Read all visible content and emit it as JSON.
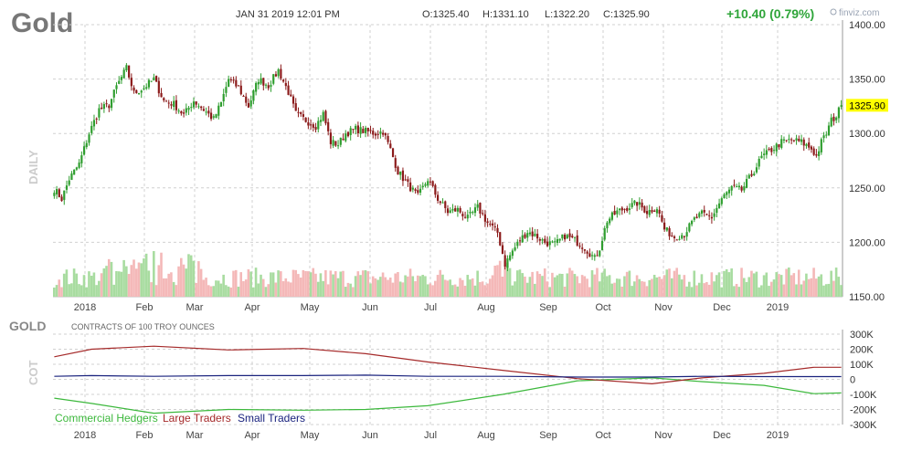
{
  "header": {
    "symbol": "Gold",
    "datetime": "JAN 31 2019 12:01 PM",
    "open": "O:1325.40",
    "high": "H:1331.10",
    "low": "L:1322.20",
    "close": "C:1325.90",
    "change": "+10.40 (0.79%)",
    "brand": "finviz.com"
  },
  "colors": {
    "up": "#2f9e2f",
    "down": "#8b1a1a",
    "volume_up": "#a8dca0",
    "volume_down": "#f4b8b8",
    "grid": "#d0d0d0",
    "commercial": "#3cb83c",
    "large": "#a52a2a",
    "small": "#1a237e",
    "last_price_bg": "#ffff00",
    "change_text": "#2fa53a"
  },
  "chart_data": [
    {
      "type": "candlestick",
      "timeframe_label": "DAILY",
      "ylim": [
        1150,
        1400
      ],
      "yticks": [
        "1150.00",
        "1200.00",
        "1250.00",
        "1300.00",
        "1350.00",
        "1400.00"
      ],
      "ytick_values": [
        1150,
        1200,
        1250,
        1300,
        1350,
        1400
      ],
      "xticks": [
        "2018",
        "Feb",
        "Mar",
        "Apr",
        "May",
        "Jun",
        "Jul",
        "Aug",
        "Sep",
        "Oct",
        "Nov",
        "Dec",
        "2019"
      ],
      "last_price": 1325.9,
      "last_price_label": "1325.90",
      "anchors": [
        [
          0,
          1249
        ],
        [
          3,
          1240
        ],
        [
          6,
          1258
        ],
        [
          10,
          1272
        ],
        [
          14,
          1300
        ],
        [
          18,
          1322
        ],
        [
          22,
          1326
        ],
        [
          25,
          1343
        ],
        [
          29,
          1360
        ],
        [
          32,
          1337
        ],
        [
          36,
          1342
        ],
        [
          40,
          1350
        ],
        [
          44,
          1330
        ],
        [
          48,
          1327
        ],
        [
          52,
          1317
        ],
        [
          56,
          1330
        ],
        [
          60,
          1322
        ],
        [
          64,
          1313
        ],
        [
          67,
          1328
        ],
        [
          70,
          1350
        ],
        [
          74,
          1342
        ],
        [
          78,
          1325
        ],
        [
          82,
          1350
        ],
        [
          86,
          1344
        ],
        [
          90,
          1358
        ],
        [
          94,
          1338
        ],
        [
          97,
          1318
        ],
        [
          101,
          1312
        ],
        [
          105,
          1307
        ],
        [
          108,
          1318
        ],
        [
          111,
          1292
        ],
        [
          114,
          1290
        ],
        [
          117,
          1300
        ],
        [
          121,
          1304
        ],
        [
          125,
          1302
        ],
        [
          129,
          1300
        ],
        [
          132,
          1302
        ],
        [
          135,
          1285
        ],
        [
          138,
          1265
        ],
        [
          142,
          1253
        ],
        [
          146,
          1242
        ],
        [
          150,
          1258
        ],
        [
          154,
          1240
        ],
        [
          158,
          1228
        ],
        [
          162,
          1230
        ],
        [
          166,
          1222
        ],
        [
          170,
          1232
        ],
        [
          174,
          1218
        ],
        [
          178,
          1209
        ],
        [
          181,
          1180
        ],
        [
          184,
          1192
        ],
        [
          187,
          1202
        ],
        [
          190,
          1210
        ],
        [
          194,
          1205
        ],
        [
          197,
          1200
        ],
        [
          201,
          1198
        ],
        [
          205,
          1206
        ],
        [
          209,
          1202
        ],
        [
          213,
          1195
        ],
        [
          217,
          1185
        ],
        [
          219,
          1195
        ],
        [
          222,
          1220
        ],
        [
          226,
          1228
        ],
        [
          230,
          1232
        ],
        [
          234,
          1236
        ],
        [
          238,
          1228
        ],
        [
          242,
          1232
        ],
        [
          245,
          1212
        ],
        [
          249,
          1205
        ],
        [
          253,
          1208
        ],
        [
          257,
          1221
        ],
        [
          260,
          1226
        ],
        [
          264,
          1223
        ],
        [
          268,
          1240
        ],
        [
          272,
          1250
        ],
        [
          276,
          1248
        ],
        [
          280,
          1262
        ],
        [
          284,
          1278
        ],
        [
          288,
          1285
        ],
        [
          292,
          1292
        ],
        [
          296,
          1294
        ],
        [
          300,
          1292
        ],
        [
          304,
          1286
        ],
        [
          306,
          1279
        ],
        [
          308,
          1292
        ],
        [
          310,
          1300
        ],
        [
          312,
          1312
        ],
        [
          314,
          1316
        ],
        [
          316,
          1326
        ]
      ],
      "monthly_ohlc": [
        {
          "month": "2018",
          "open": 1306,
          "high": 1366,
          "low": 1303,
          "close": 1343
        },
        {
          "month": "Feb",
          "open": 1343,
          "high": 1362,
          "low": 1307,
          "close": 1318
        },
        {
          "month": "Mar",
          "open": 1318,
          "high": 1356,
          "low": 1303,
          "close": 1325
        },
        {
          "month": "Apr",
          "open": 1325,
          "high": 1370,
          "low": 1309,
          "close": 1315
        },
        {
          "month": "May",
          "open": 1315,
          "high": 1326,
          "low": 1281,
          "close": 1299
        },
        {
          "month": "Jun",
          "open": 1299,
          "high": 1310,
          "low": 1246,
          "close": 1253
        },
        {
          "month": "Jul",
          "open": 1253,
          "high": 1266,
          "low": 1211,
          "close": 1233
        },
        {
          "month": "Aug",
          "open": 1233,
          "high": 1237,
          "low": 1167,
          "close": 1205
        },
        {
          "month": "Sep",
          "open": 1205,
          "high": 1214,
          "low": 1185,
          "close": 1196
        },
        {
          "month": "Oct",
          "open": 1196,
          "high": 1245,
          "low": 1182,
          "close": 1215
        },
        {
          "month": "Nov",
          "open": 1215,
          "high": 1238,
          "low": 1196,
          "close": 1225
        },
        {
          "month": "Dec",
          "open": 1225,
          "high": 1285,
          "low": 1222,
          "close": 1283
        },
        {
          "month": "2019",
          "open": 1283,
          "high": 1331,
          "low": 1275,
          "close": 1326
        }
      ]
    },
    {
      "type": "line",
      "title": "GOLD",
      "subtitle": "CONTRACTS OF 100 TROY OUNCES",
      "side_label": "COT",
      "ylim": [
        -300000,
        300000
      ],
      "yticks": [
        "300K",
        "200K",
        "100K",
        "0",
        "-100K",
        "-200K",
        "-300K"
      ],
      "ytick_values": [
        300000,
        200000,
        100000,
        0,
        -100000,
        -200000,
        -300000
      ],
      "xticks": [
        "2018",
        "Feb",
        "Mar",
        "Apr",
        "May",
        "Jun",
        "Jul",
        "Aug",
        "Sep",
        "Oct",
        "Nov",
        "Dec",
        "2019"
      ],
      "series": [
        {
          "name": "Commercial Hedgers",
          "values": [
            -125000,
            -160000,
            -225000,
            -200000,
            -205000,
            -200000,
            -175000,
            -100000,
            -10000,
            10000,
            -15000,
            -40000,
            -95000,
            -90000
          ]
        },
        {
          "name": "Large Traders",
          "values": [
            150000,
            200000,
            220000,
            195000,
            205000,
            170000,
            115000,
            60000,
            5000,
            -30000,
            10000,
            40000,
            80000,
            80000
          ]
        },
        {
          "name": "Small Traders",
          "values": [
            20000,
            25000,
            20000,
            25000,
            25000,
            28000,
            20000,
            20000,
            15000,
            15000,
            20000,
            18000,
            18000,
            18000
          ]
        }
      ],
      "x_positions": [
        0,
        15,
        40,
        70,
        100,
        125,
        150,
        180,
        210,
        240,
        260,
        285,
        305,
        316
      ]
    }
  ]
}
